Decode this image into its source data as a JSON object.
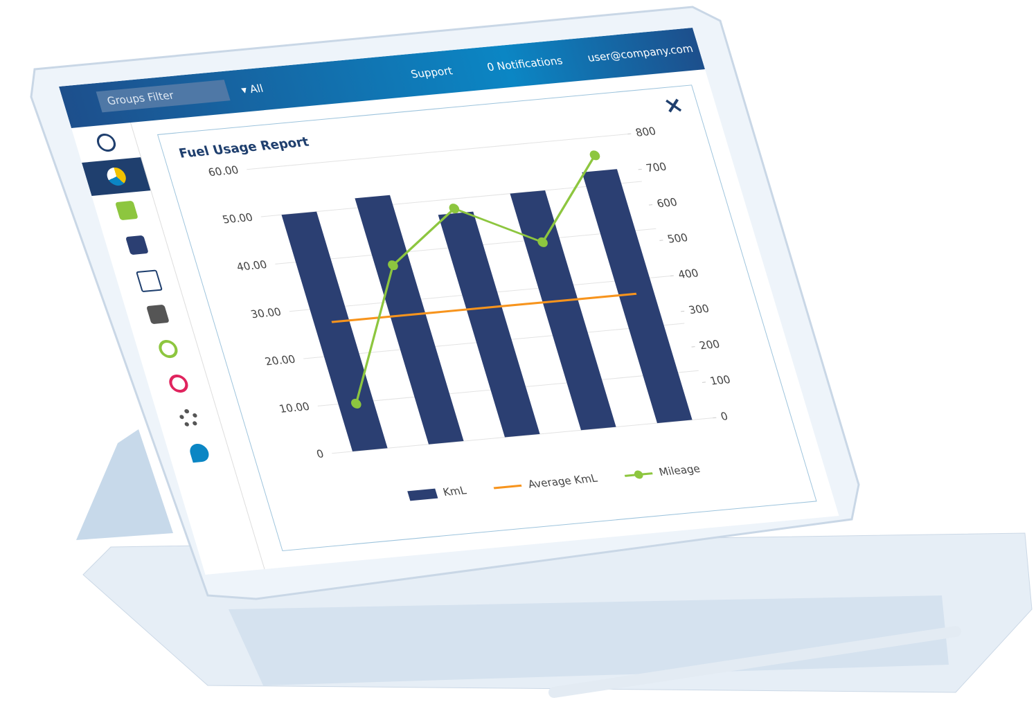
{
  "header": {
    "groups_filter": "Groups Filter",
    "group_value": "All",
    "support": "Support",
    "notifications": "0 Notifications",
    "user": "user@company.com"
  },
  "chart_data": {
    "type": "bar",
    "title": "Fuel Usage Report",
    "categories": [
      null,
      null,
      null,
      null,
      null
    ],
    "series": [
      {
        "name": "KmL",
        "type": "bar",
        "color": "#2b3f72",
        "values": [
          50,
          52,
          47,
          50,
          53
        ]
      },
      {
        "name": "Average KmL",
        "type": "line",
        "color": "#f7941d",
        "values": [
          27,
          27,
          27,
          27,
          27
        ]
      },
      {
        "name": "Mileage",
        "type": "line",
        "axis": "y2",
        "marker": true,
        "color": "#8dc63f",
        "values": [
          130,
          500,
          640,
          525,
          750
        ]
      }
    ],
    "ylim": [
      0,
      60
    ],
    "yticks": [
      0,
      {
        "value": 10,
        "label": "10.00"
      },
      {
        "value": 20,
        "label": "20.00"
      },
      {
        "value": 30,
        "label": "30.00"
      },
      {
        "value": 40,
        "label": "40.00"
      },
      {
        "value": 50,
        "label": "50.00"
      },
      {
        "value": 60,
        "label": "60.00"
      }
    ],
    "y2lim": [
      0,
      800
    ],
    "y2ticks": [
      0,
      100,
      200,
      300,
      400,
      500,
      600,
      700,
      800
    ],
    "grid": true,
    "legend": "bottom"
  }
}
